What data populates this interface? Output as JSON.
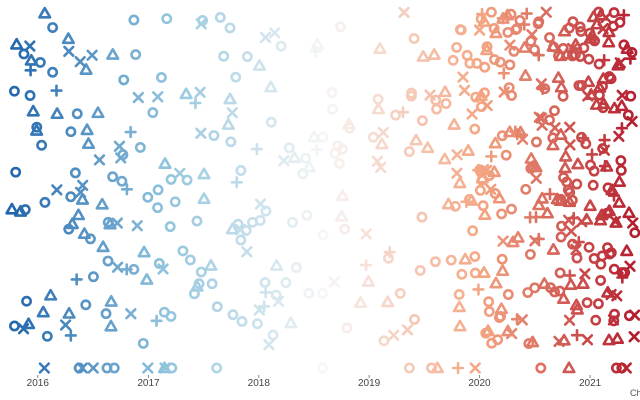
{
  "chart_data": {
    "type": "scatter",
    "title": "",
    "xlabel": "",
    "ylabel": "",
    "x_axis": {
      "type": "date",
      "range": [
        "2015-10-01",
        "2021-06-15"
      ],
      "ticks": [
        {
          "value": "2016-01-01",
          "label": "2016"
        },
        {
          "value": "2017-01-01",
          "label": "2017"
        },
        {
          "value": "2018-01-01",
          "label": "2018"
        },
        {
          "value": "2019-01-01",
          "label": "2019"
        },
        {
          "value": "2020-01-01",
          "label": "2020"
        },
        {
          "value": "2021-01-01",
          "label": "2021"
        }
      ]
    },
    "y_axis": {
      "visible": false
    },
    "grid": false,
    "legend": "none",
    "marker_shapes": [
      "circle",
      "triangle",
      "cross",
      "plus"
    ],
    "color_scale": {
      "type": "diverging",
      "by": "date",
      "colors": [
        "#2166ac",
        "#92c5de",
        "#f7f7f7",
        "#f4a582",
        "#b2182b"
      ]
    },
    "density_by_year": [
      {
        "year": "2016",
        "points": 70
      },
      {
        "year": "2017",
        "points": 60
      },
      {
        "year": "2018",
        "points": 60
      },
      {
        "year": "2019",
        "points": 50
      },
      {
        "year": "2020",
        "points": 170
      },
      {
        "year": "2021",
        "points": 160
      }
    ],
    "edge_label": "Ch"
  }
}
